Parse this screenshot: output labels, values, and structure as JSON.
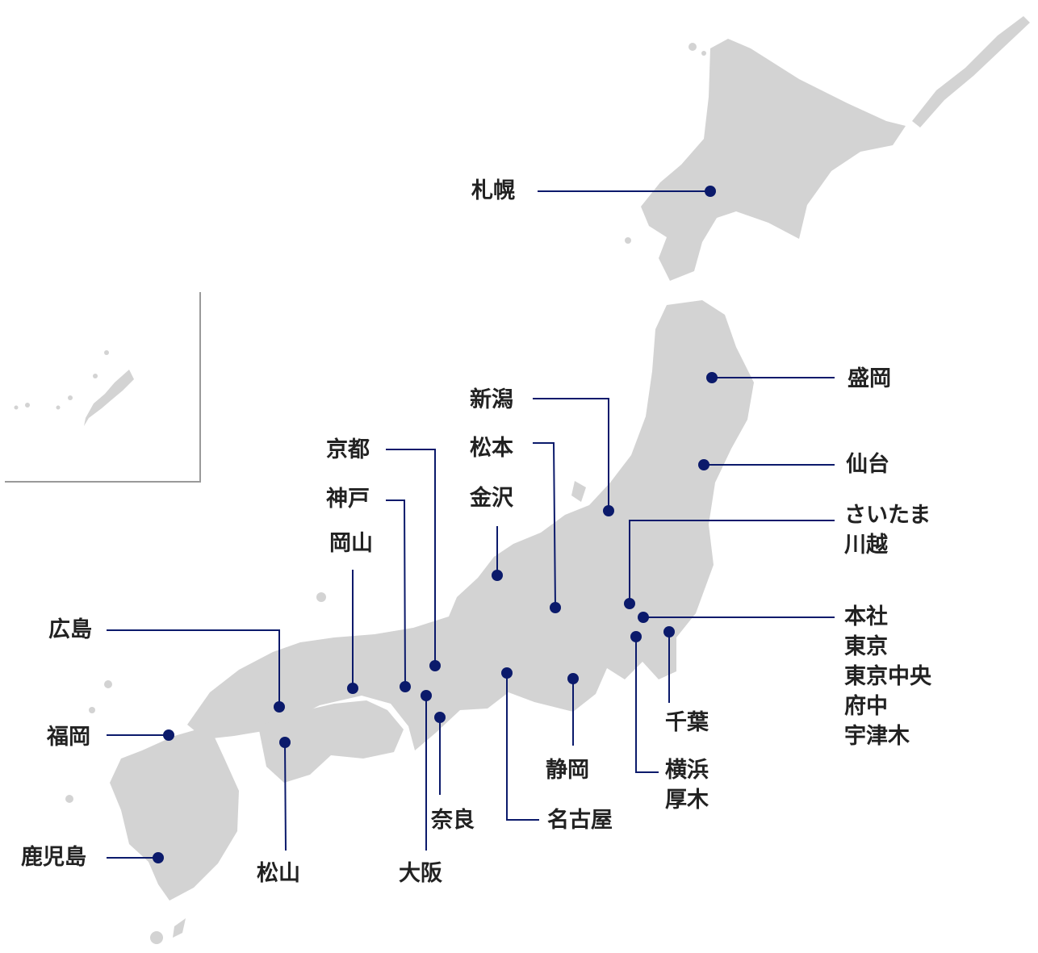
{
  "colors": {
    "land": "#d3d3d3",
    "leader": "#0b1a6b",
    "text": "#222222",
    "inset_frame": "#9a9a9a"
  },
  "cities": {
    "sapporo": "札幌",
    "morioka": "盛岡",
    "sendai": "仙台",
    "niigata": "新潟",
    "matsumoto": "松本",
    "kanazawa": "金沢",
    "kyoto": "京都",
    "kobe": "神戸",
    "okayama": "岡山",
    "hiroshima": "広島",
    "fukuoka": "福岡",
    "kagoshima": "鹿児島",
    "matsuyama": "松山",
    "osaka": "大阪",
    "nara": "奈良",
    "nagoya": "名古屋",
    "shizuoka": "静岡",
    "chiba": "千葉",
    "saitama_group": [
      "さいたま",
      "川越"
    ],
    "tokyo_group": [
      "本社",
      "東京",
      "東京中央",
      "府中",
      "宇津木"
    ],
    "yokohama_group": [
      "横浜",
      "厚木"
    ]
  }
}
